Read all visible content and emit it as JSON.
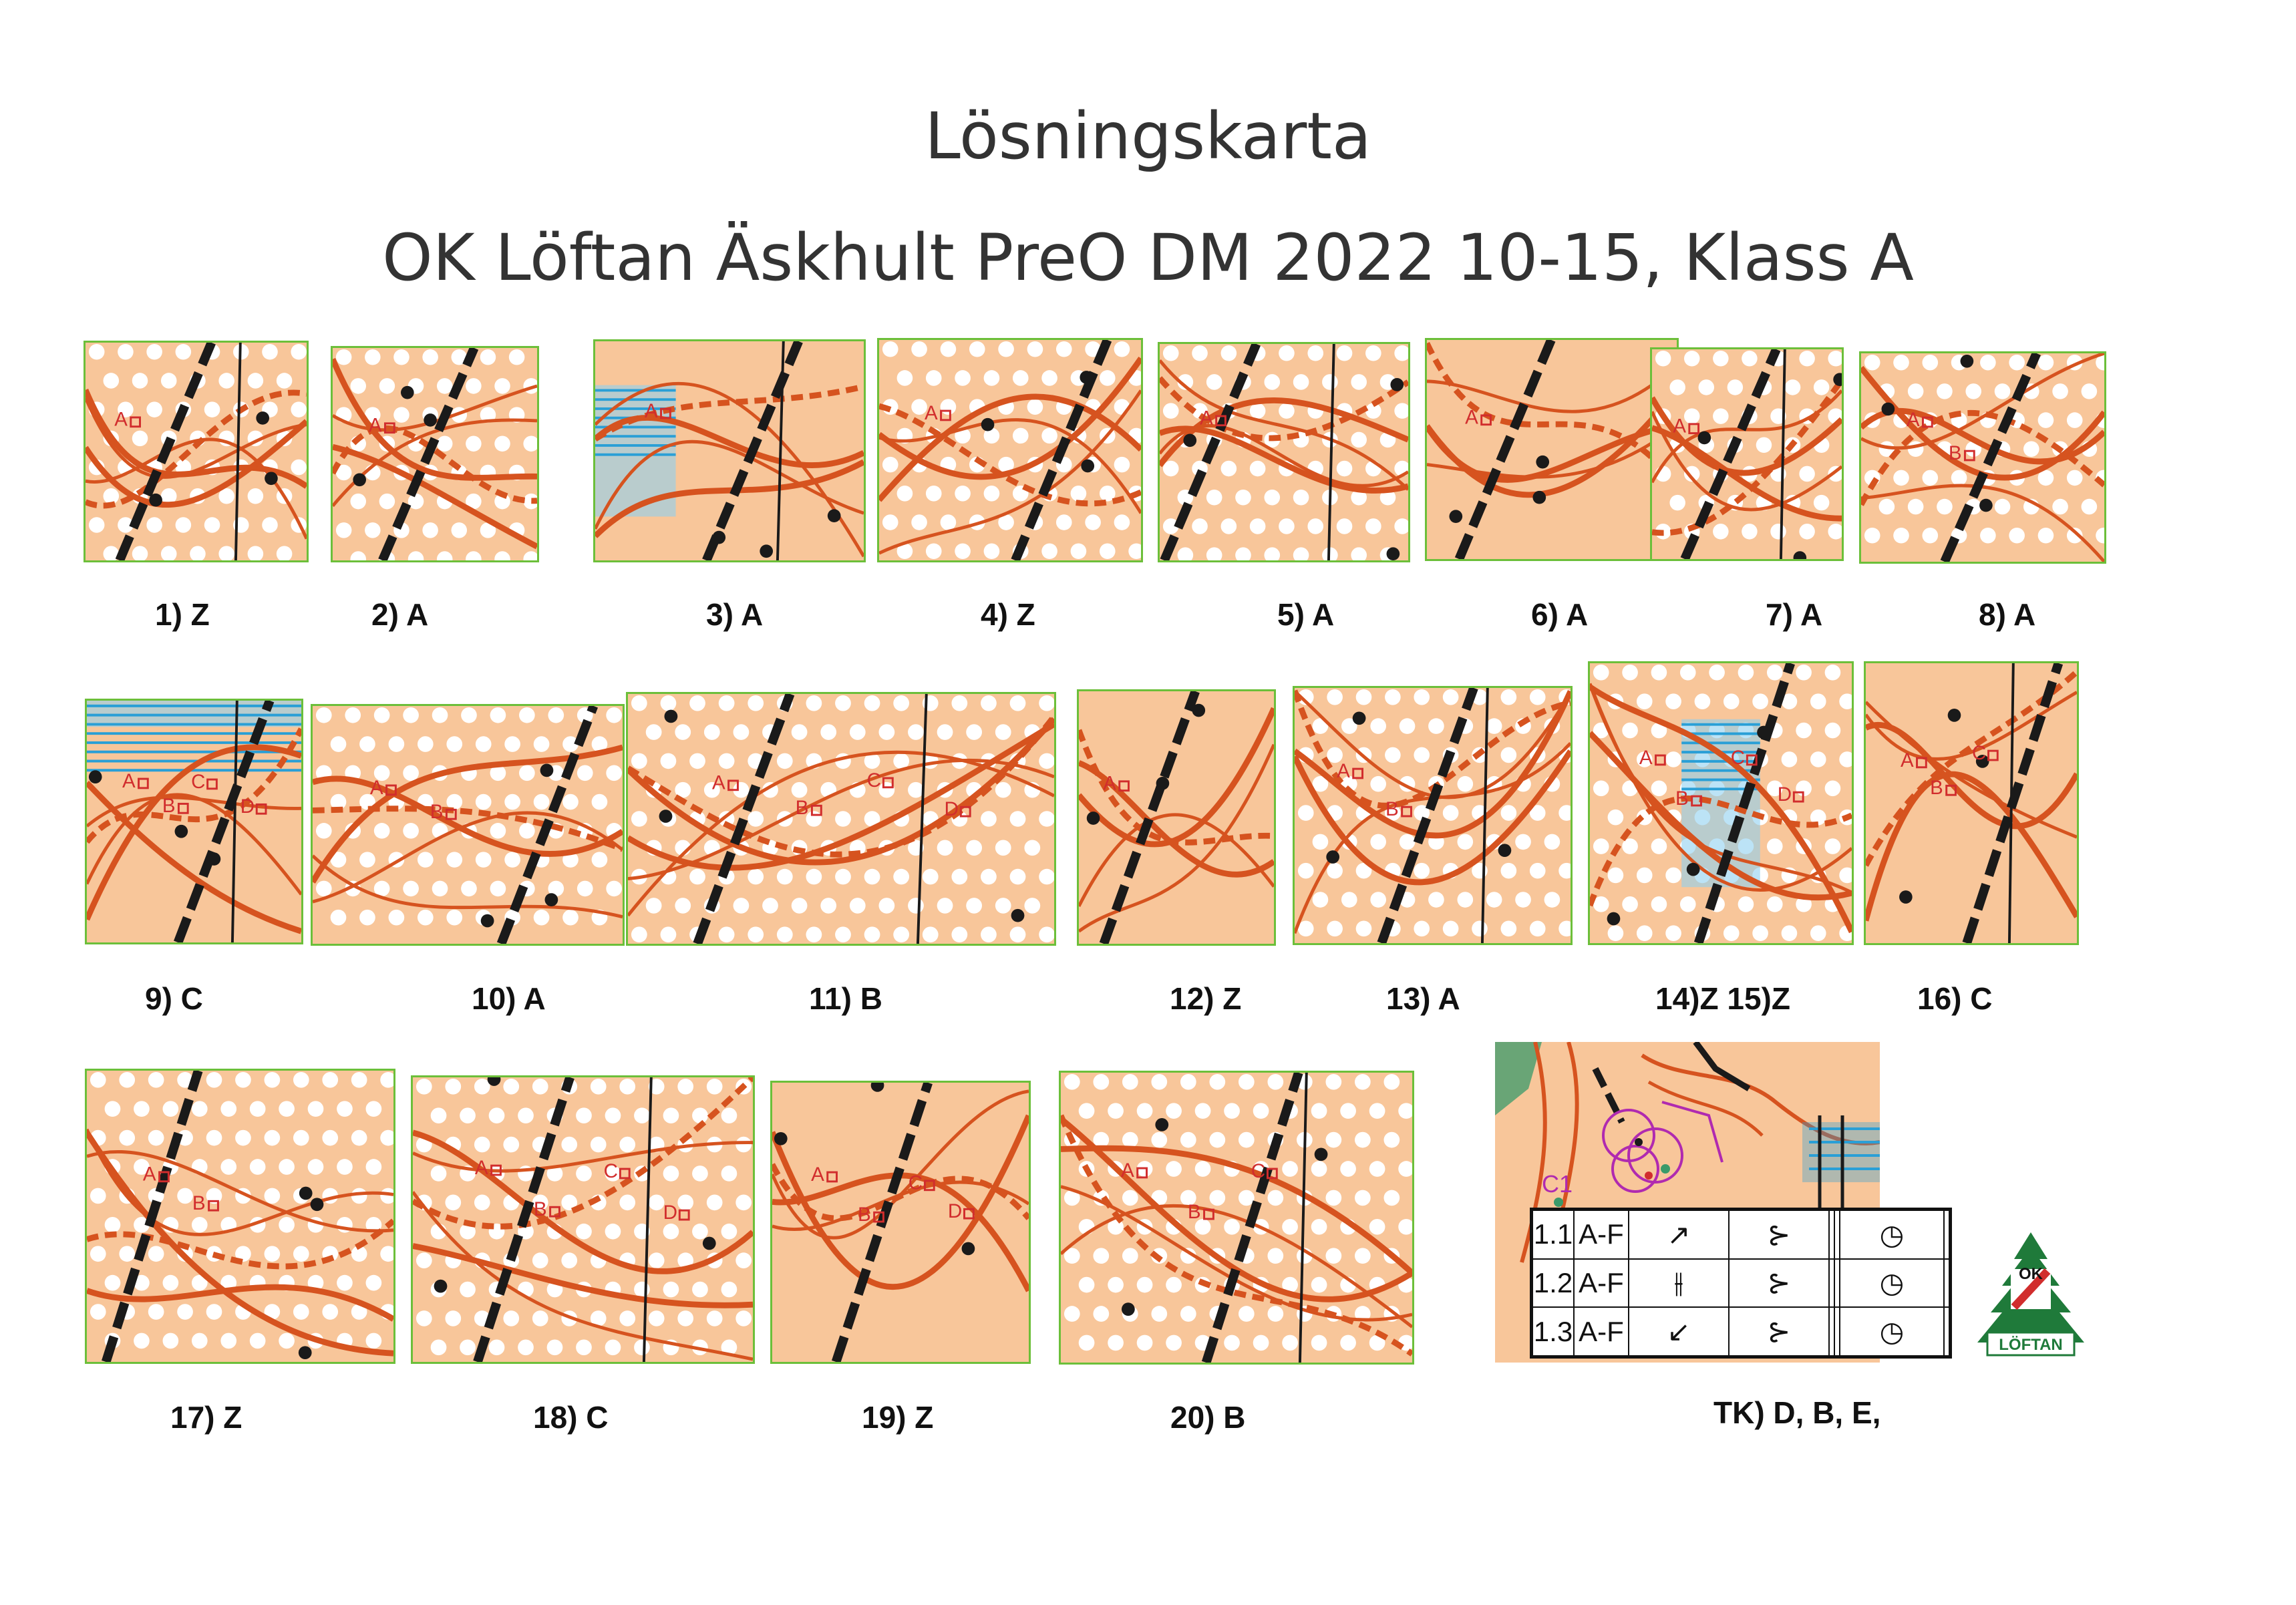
{
  "title": "Lösningskarta",
  "subtitle": "OK Löftan Äskhult  PreO DM 2022 10-15, Klass A",
  "tasks": [
    {
      "label": "1) Z",
      "markers": [
        "A"
      ]
    },
    {
      "label": "2) A",
      "markers": [
        "A"
      ]
    },
    {
      "label": "3) A",
      "markers": [
        "A"
      ]
    },
    {
      "label": "4) Z",
      "markers": [
        "A"
      ]
    },
    {
      "label": "5) A",
      "markers": [
        "A"
      ]
    },
    {
      "label": "6) A",
      "markers": [
        "A"
      ]
    },
    {
      "label": "7) A",
      "markers": [
        "A"
      ]
    },
    {
      "label": "8) A",
      "markers": [
        "A",
        "B"
      ]
    },
    {
      "label": "9) C",
      "markers": [
        "A",
        "B",
        "C",
        "D"
      ]
    },
    {
      "label": "10) A",
      "markers": [
        "A",
        "B"
      ]
    },
    {
      "label": "11) B",
      "markers": [
        "A",
        "B",
        "C",
        "D"
      ]
    },
    {
      "label": "12) Z",
      "markers": [
        "A"
      ]
    },
    {
      "label": "13) A",
      "markers": [
        "A",
        "B"
      ]
    },
    {
      "label": "14)Z  15)Z",
      "markers": [
        "A",
        "B",
        "C",
        "D"
      ]
    },
    {
      "label": "16) C",
      "markers": [
        "A",
        "B",
        "C"
      ]
    },
    {
      "label": "17) Z",
      "markers": [
        "A",
        "B"
      ]
    },
    {
      "label": "18) C",
      "markers": [
        "A",
        "B",
        "C",
        "D"
      ]
    },
    {
      "label": "19) Z",
      "markers": [
        "A",
        "B",
        "C",
        "D"
      ]
    },
    {
      "label": "20) B",
      "markers": [
        "A",
        "B",
        "C"
      ]
    }
  ],
  "timed_control": {
    "label": "TK)  D, B, E,",
    "map_label": "C1",
    "rows": [
      {
        "num": "1.1",
        "range": "A-F",
        "dir": "↗",
        "feature": "⊱",
        "clock": "◷"
      },
      {
        "num": "1.2",
        "range": "A-F",
        "dir": "⫲",
        "feature": "⊱",
        "clock": "◷"
      },
      {
        "num": "1.3",
        "range": "A-F",
        "dir": "↙",
        "feature": "⊱",
        "clock": "◷"
      }
    ]
  },
  "logo": {
    "top": "OK",
    "bottom": "LÖFTAN"
  },
  "colors": {
    "map_bg": "#f8c69a",
    "contour": "#d6531f",
    "rock": "#1a1a1a",
    "water": "#2a9fd6",
    "veg": "#3a9a6a",
    "frame": "#6cbf3a",
    "marker": "#d12d2d",
    "logo_green": "#1f7a3a"
  }
}
